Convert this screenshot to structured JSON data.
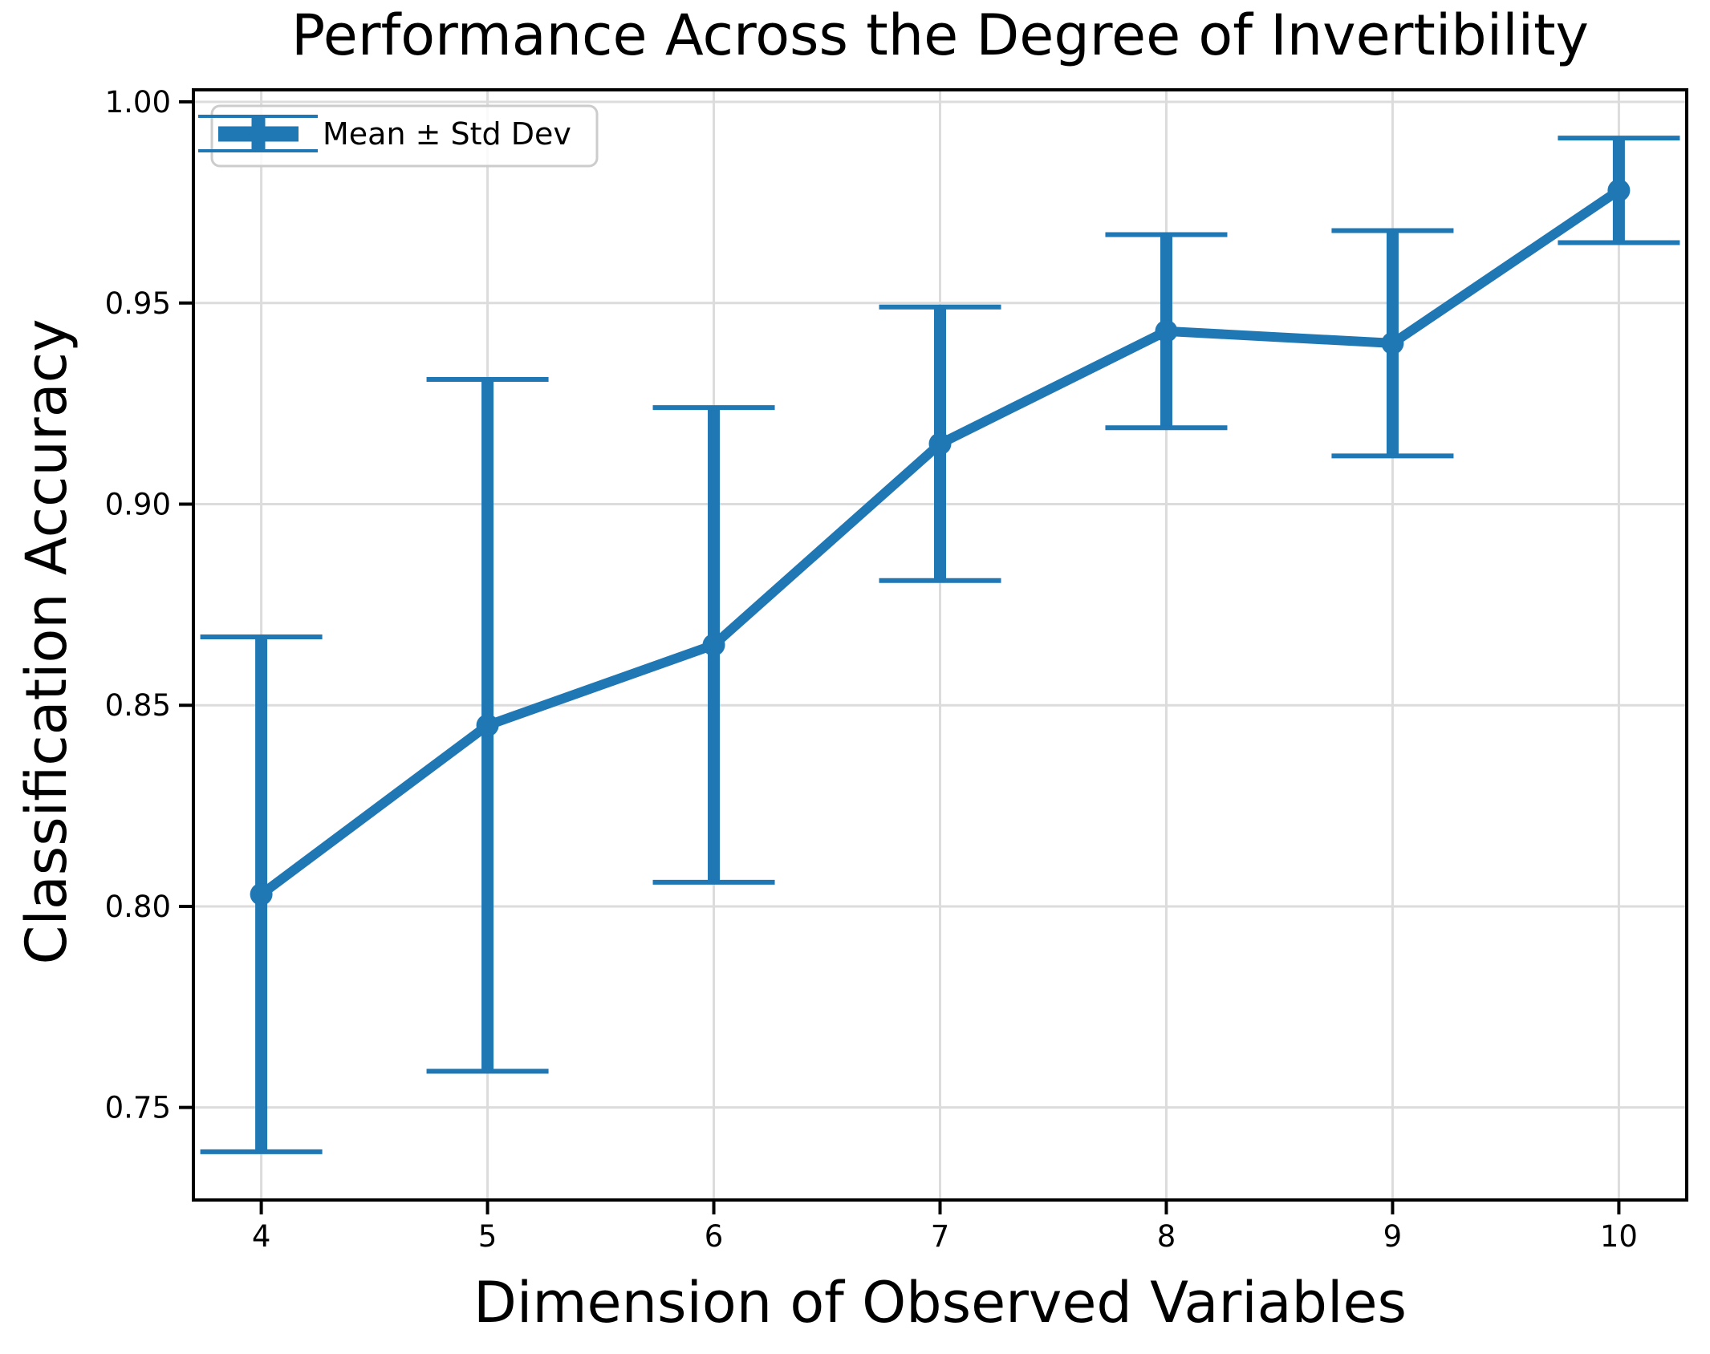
{
  "chart_data": {
    "type": "line",
    "title": "Performance Across the Degree of Invertibility",
    "xlabel": "Dimension of Observed Variables",
    "ylabel": "Classification Accuracy",
    "legend": [
      "Mean ± Std Dev"
    ],
    "legend_position": "upper left",
    "grid": true,
    "x": [
      4,
      5,
      6,
      7,
      8,
      9,
      10
    ],
    "series": [
      {
        "name": "Mean ± Std Dev",
        "mean": [
          0.803,
          0.845,
          0.865,
          0.915,
          0.943,
          0.94,
          0.978
        ],
        "std": [
          0.064,
          0.086,
          0.059,
          0.034,
          0.024,
          0.028,
          0.013
        ]
      }
    ],
    "xlim": [
      3.7,
      10.3
    ],
    "ylim": [
      0.727,
      1.003
    ],
    "xticks": {
      "values": [
        4,
        5,
        6,
        7,
        8,
        9,
        10
      ],
      "labels": [
        "4",
        "5",
        "6",
        "7",
        "8",
        "9",
        "10"
      ]
    },
    "yticks": {
      "values": [
        0.75,
        0.8,
        0.85,
        0.9,
        0.95,
        1.0
      ],
      "labels": [
        "0.75",
        "0.80",
        "0.85",
        "0.90",
        "0.95",
        "1.00"
      ]
    },
    "colors": {
      "line": "#1f77b4",
      "grid": "#dcdcdc",
      "axis": "#000000",
      "tick_label": "#000000",
      "legend_border": "#cccccc",
      "background": "#ffffff"
    }
  }
}
